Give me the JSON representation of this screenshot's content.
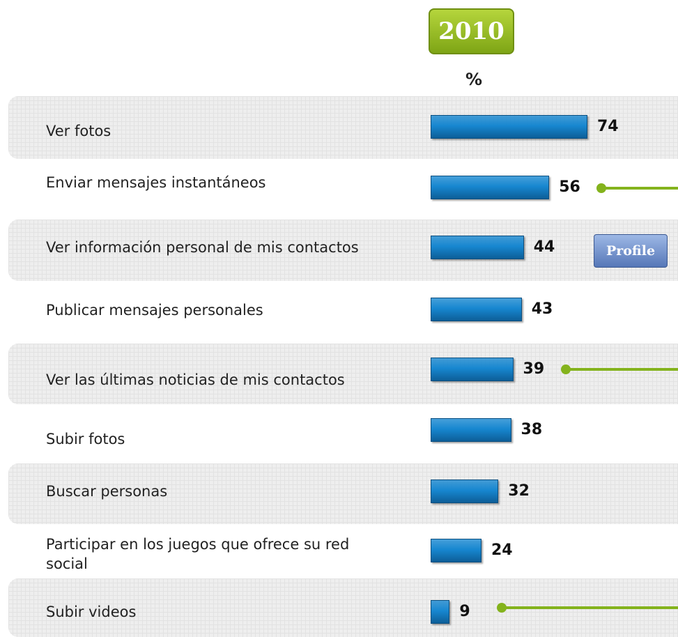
{
  "chart_data": {
    "type": "bar",
    "orientation": "horizontal",
    "title": "2010",
    "unit_label": "%",
    "categories": [
      "Ver fotos",
      "Enviar mensajes instantáneos",
      "Ver información personal de mis contactos",
      "Publicar mensajes personales",
      "Ver las últimas noticias de mis contactos",
      "Subir fotos",
      "Buscar personas",
      "Participar en los juegos que ofrece su red social",
      "Subir videos"
    ],
    "values": [
      74,
      56,
      44,
      43,
      39,
      38,
      32,
      24,
      9
    ],
    "color": "#1787d0",
    "button": "Profile"
  }
}
